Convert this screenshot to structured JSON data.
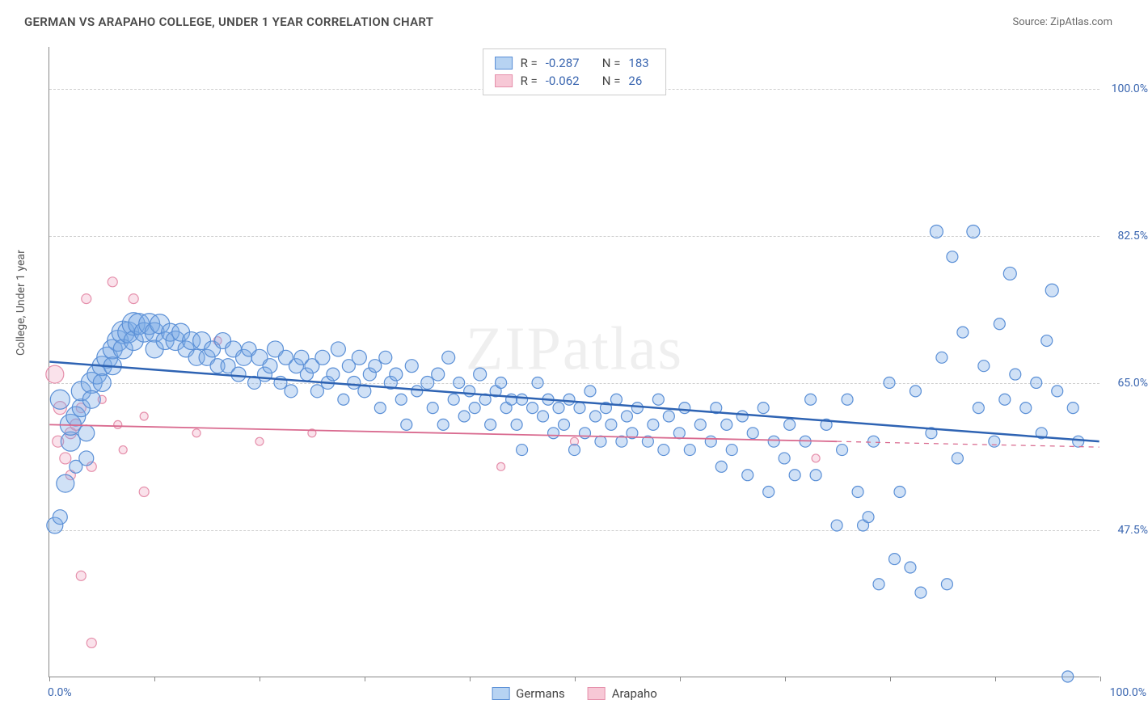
{
  "title": "GERMAN VS ARAPAHO COLLEGE, UNDER 1 YEAR CORRELATION CHART",
  "source": "Source: ZipAtlas.com",
  "ylabel": "College, Under 1 year",
  "watermark": "ZIPatlas",
  "xaxis": {
    "min_label": "0.0%",
    "max_label": "100.0%",
    "min": 0,
    "max": 100,
    "tick_positions": [
      0,
      10,
      20,
      30,
      40,
      50,
      60,
      70,
      80,
      90,
      100
    ]
  },
  "yaxis": {
    "min": 30,
    "max": 105,
    "ticks": [
      {
        "v": 47.5,
        "label": "47.5%"
      },
      {
        "v": 65.0,
        "label": "65.0%"
      },
      {
        "v": 82.5,
        "label": "82.5%"
      },
      {
        "v": 100.0,
        "label": "100.0%"
      }
    ],
    "grid_color": "#cfcfcf"
  },
  "legend_top": [
    {
      "swatch_fill": "#b7d3f2",
      "swatch_stroke": "#5a8fd6",
      "R": "-0.287",
      "N": "183"
    },
    {
      "swatch_fill": "#f7c8d6",
      "swatch_stroke": "#e58fab",
      "R": "-0.062",
      "N": "26"
    }
  ],
  "legend_bottom": [
    {
      "swatch_fill": "#b7d3f2",
      "swatch_stroke": "#5a8fd6",
      "label": "Germans"
    },
    {
      "swatch_fill": "#f7c8d6",
      "swatch_stroke": "#e58fab",
      "label": "Arapaho"
    }
  ],
  "series": {
    "germans": {
      "color_fill": "rgba(120,170,230,0.35)",
      "color_stroke": "#5a8fd6",
      "trend": {
        "x1": 0,
        "y1": 67.5,
        "x2": 100,
        "y2": 58,
        "color": "#2e63b3",
        "width": 2.5
      },
      "points": [
        {
          "x": 0.5,
          "y": 48,
          "r": 10
        },
        {
          "x": 1,
          "y": 49,
          "r": 9
        },
        {
          "x": 1,
          "y": 63,
          "r": 12
        },
        {
          "x": 1.5,
          "y": 53,
          "r": 11
        },
        {
          "x": 2,
          "y": 58,
          "r": 12
        },
        {
          "x": 2,
          "y": 60,
          "r": 13
        },
        {
          "x": 2.5,
          "y": 61,
          "r": 12
        },
        {
          "x": 2.5,
          "y": 55,
          "r": 8
        },
        {
          "x": 3,
          "y": 62,
          "r": 11
        },
        {
          "x": 3,
          "y": 64,
          "r": 12
        },
        {
          "x": 3.5,
          "y": 59,
          "r": 10
        },
        {
          "x": 3.5,
          "y": 56,
          "r": 9
        },
        {
          "x": 4,
          "y": 65,
          "r": 13
        },
        {
          "x": 4,
          "y": 63,
          "r": 11
        },
        {
          "x": 4.5,
          "y": 66,
          "r": 12
        },
        {
          "x": 5,
          "y": 67,
          "r": 12
        },
        {
          "x": 5,
          "y": 65,
          "r": 11
        },
        {
          "x": 5.5,
          "y": 68,
          "r": 13
        },
        {
          "x": 6,
          "y": 69,
          "r": 12
        },
        {
          "x": 6,
          "y": 67,
          "r": 11
        },
        {
          "x": 6.5,
          "y": 70,
          "r": 13
        },
        {
          "x": 7,
          "y": 71,
          "r": 14
        },
        {
          "x": 7,
          "y": 69,
          "r": 12
        },
        {
          "x": 7.5,
          "y": 71,
          "r": 13
        },
        {
          "x": 8,
          "y": 72,
          "r": 14
        },
        {
          "x": 8,
          "y": 70,
          "r": 12
        },
        {
          "x": 8.5,
          "y": 72,
          "r": 13
        },
        {
          "x": 9,
          "y": 71,
          "r": 12
        },
        {
          "x": 9.5,
          "y": 72,
          "r": 13
        },
        {
          "x": 10,
          "y": 71,
          "r": 12
        },
        {
          "x": 10,
          "y": 69,
          "r": 11
        },
        {
          "x": 10.5,
          "y": 72,
          "r": 12
        },
        {
          "x": 11,
          "y": 70,
          "r": 11
        },
        {
          "x": 11.5,
          "y": 71,
          "r": 11
        },
        {
          "x": 12,
          "y": 70,
          "r": 12
        },
        {
          "x": 12.5,
          "y": 71,
          "r": 11
        },
        {
          "x": 13,
          "y": 69,
          "r": 10
        },
        {
          "x": 13.5,
          "y": 70,
          "r": 11
        },
        {
          "x": 14,
          "y": 68,
          "r": 10
        },
        {
          "x": 14.5,
          "y": 70,
          "r": 11
        },
        {
          "x": 15,
          "y": 68,
          "r": 10
        },
        {
          "x": 15.5,
          "y": 69,
          "r": 10
        },
        {
          "x": 16,
          "y": 67,
          "r": 9
        },
        {
          "x": 16.5,
          "y": 70,
          "r": 10
        },
        {
          "x": 17,
          "y": 67,
          "r": 9
        },
        {
          "x": 17.5,
          "y": 69,
          "r": 10
        },
        {
          "x": 18,
          "y": 66,
          "r": 9
        },
        {
          "x": 18.5,
          "y": 68,
          "r": 10
        },
        {
          "x": 19,
          "y": 69,
          "r": 9
        },
        {
          "x": 19.5,
          "y": 65,
          "r": 8
        },
        {
          "x": 20,
          "y": 68,
          "r": 10
        },
        {
          "x": 20.5,
          "y": 66,
          "r": 9
        },
        {
          "x": 21,
          "y": 67,
          "r": 9
        },
        {
          "x": 21.5,
          "y": 69,
          "r": 10
        },
        {
          "x": 22,
          "y": 65,
          "r": 8
        },
        {
          "x": 22.5,
          "y": 68,
          "r": 9
        },
        {
          "x": 23,
          "y": 64,
          "r": 8
        },
        {
          "x": 23.5,
          "y": 67,
          "r": 9
        },
        {
          "x": 24,
          "y": 68,
          "r": 9
        },
        {
          "x": 24.5,
          "y": 66,
          "r": 8
        },
        {
          "x": 25,
          "y": 67,
          "r": 9
        },
        {
          "x": 25.5,
          "y": 64,
          "r": 8
        },
        {
          "x": 26,
          "y": 68,
          "r": 9
        },
        {
          "x": 26.5,
          "y": 65,
          "r": 8
        },
        {
          "x": 27,
          "y": 66,
          "r": 8
        },
        {
          "x": 27.5,
          "y": 69,
          "r": 9
        },
        {
          "x": 28,
          "y": 63,
          "r": 7
        },
        {
          "x": 28.5,
          "y": 67,
          "r": 8
        },
        {
          "x": 29,
          "y": 65,
          "r": 8
        },
        {
          "x": 29.5,
          "y": 68,
          "r": 9
        },
        {
          "x": 30,
          "y": 64,
          "r": 8
        },
        {
          "x": 30.5,
          "y": 66,
          "r": 8
        },
        {
          "x": 31,
          "y": 67,
          "r": 8
        },
        {
          "x": 31.5,
          "y": 62,
          "r": 7
        },
        {
          "x": 32,
          "y": 68,
          "r": 8
        },
        {
          "x": 32.5,
          "y": 65,
          "r": 8
        },
        {
          "x": 33,
          "y": 66,
          "r": 8
        },
        {
          "x": 33.5,
          "y": 63,
          "r": 7
        },
        {
          "x": 34,
          "y": 60,
          "r": 7
        },
        {
          "x": 34.5,
          "y": 67,
          "r": 8
        },
        {
          "x": 35,
          "y": 64,
          "r": 7
        },
        {
          "x": 36,
          "y": 65,
          "r": 8
        },
        {
          "x": 36.5,
          "y": 62,
          "r": 7
        },
        {
          "x": 37,
          "y": 66,
          "r": 8
        },
        {
          "x": 37.5,
          "y": 60,
          "r": 7
        },
        {
          "x": 38,
          "y": 68,
          "r": 8
        },
        {
          "x": 38.5,
          "y": 63,
          "r": 7
        },
        {
          "x": 39,
          "y": 65,
          "r": 7
        },
        {
          "x": 39.5,
          "y": 61,
          "r": 7
        },
        {
          "x": 40,
          "y": 64,
          "r": 7
        },
        {
          "x": 40.5,
          "y": 62,
          "r": 7
        },
        {
          "x": 41,
          "y": 66,
          "r": 8
        },
        {
          "x": 41.5,
          "y": 63,
          "r": 7
        },
        {
          "x": 42,
          "y": 60,
          "r": 7
        },
        {
          "x": 42.5,
          "y": 64,
          "r": 7
        },
        {
          "x": 43,
          "y": 65,
          "r": 7
        },
        {
          "x": 43.5,
          "y": 62,
          "r": 7
        },
        {
          "x": 44,
          "y": 63,
          "r": 7
        },
        {
          "x": 44.5,
          "y": 60,
          "r": 7
        },
        {
          "x": 45,
          "y": 63,
          "r": 7
        },
        {
          "x": 45,
          "y": 57,
          "r": 7
        },
        {
          "x": 46,
          "y": 62,
          "r": 7
        },
        {
          "x": 46.5,
          "y": 65,
          "r": 7
        },
        {
          "x": 47,
          "y": 61,
          "r": 7
        },
        {
          "x": 47.5,
          "y": 63,
          "r": 7
        },
        {
          "x": 48,
          "y": 59,
          "r": 7
        },
        {
          "x": 48.5,
          "y": 62,
          "r": 7
        },
        {
          "x": 49,
          "y": 60,
          "r": 7
        },
        {
          "x": 49.5,
          "y": 63,
          "r": 7
        },
        {
          "x": 50,
          "y": 57,
          "r": 7
        },
        {
          "x": 50.5,
          "y": 62,
          "r": 7
        },
        {
          "x": 51,
          "y": 59,
          "r": 7
        },
        {
          "x": 51.5,
          "y": 64,
          "r": 7
        },
        {
          "x": 52,
          "y": 61,
          "r": 7
        },
        {
          "x": 52.5,
          "y": 58,
          "r": 7
        },
        {
          "x": 53,
          "y": 62,
          "r": 7
        },
        {
          "x": 53.5,
          "y": 60,
          "r": 7
        },
        {
          "x": 54,
          "y": 63,
          "r": 7
        },
        {
          "x": 54.5,
          "y": 58,
          "r": 7
        },
        {
          "x": 55,
          "y": 61,
          "r": 7
        },
        {
          "x": 55.5,
          "y": 59,
          "r": 7
        },
        {
          "x": 56,
          "y": 62,
          "r": 7
        },
        {
          "x": 57,
          "y": 58,
          "r": 7
        },
        {
          "x": 57.5,
          "y": 60,
          "r": 7
        },
        {
          "x": 58,
          "y": 63,
          "r": 7
        },
        {
          "x": 58.5,
          "y": 57,
          "r": 7
        },
        {
          "x": 59,
          "y": 61,
          "r": 7
        },
        {
          "x": 60,
          "y": 59,
          "r": 7
        },
        {
          "x": 60.5,
          "y": 62,
          "r": 7
        },
        {
          "x": 61,
          "y": 57,
          "r": 7
        },
        {
          "x": 62,
          "y": 60,
          "r": 7
        },
        {
          "x": 63,
          "y": 58,
          "r": 7
        },
        {
          "x": 63.5,
          "y": 62,
          "r": 7
        },
        {
          "x": 64,
          "y": 55,
          "r": 7
        },
        {
          "x": 64.5,
          "y": 60,
          "r": 7
        },
        {
          "x": 65,
          "y": 57,
          "r": 7
        },
        {
          "x": 66,
          "y": 61,
          "r": 7
        },
        {
          "x": 66.5,
          "y": 54,
          "r": 7
        },
        {
          "x": 67,
          "y": 59,
          "r": 7
        },
        {
          "x": 68,
          "y": 62,
          "r": 7
        },
        {
          "x": 68.5,
          "y": 52,
          "r": 7
        },
        {
          "x": 69,
          "y": 58,
          "r": 7
        },
        {
          "x": 70,
          "y": 56,
          "r": 7
        },
        {
          "x": 70.5,
          "y": 60,
          "r": 7
        },
        {
          "x": 71,
          "y": 54,
          "r": 7
        },
        {
          "x": 72,
          "y": 58,
          "r": 7
        },
        {
          "x": 72.5,
          "y": 63,
          "r": 7
        },
        {
          "x": 73,
          "y": 54,
          "r": 7
        },
        {
          "x": 74,
          "y": 60,
          "r": 7
        },
        {
          "x": 75,
          "y": 48,
          "r": 7
        },
        {
          "x": 75.5,
          "y": 57,
          "r": 7
        },
        {
          "x": 76,
          "y": 63,
          "r": 7
        },
        {
          "x": 77,
          "y": 52,
          "r": 7
        },
        {
          "x": 77.5,
          "y": 48,
          "r": 7
        },
        {
          "x": 78,
          "y": 49,
          "r": 7
        },
        {
          "x": 78.5,
          "y": 58,
          "r": 7
        },
        {
          "x": 79,
          "y": 41,
          "r": 7
        },
        {
          "x": 80,
          "y": 65,
          "r": 7
        },
        {
          "x": 80.5,
          "y": 44,
          "r": 7
        },
        {
          "x": 81,
          "y": 52,
          "r": 7
        },
        {
          "x": 82,
          "y": 43,
          "r": 7
        },
        {
          "x": 82.5,
          "y": 64,
          "r": 7
        },
        {
          "x": 83,
          "y": 40,
          "r": 7
        },
        {
          "x": 84,
          "y": 59,
          "r": 7
        },
        {
          "x": 84.5,
          "y": 83,
          "r": 8
        },
        {
          "x": 85,
          "y": 68,
          "r": 7
        },
        {
          "x": 85.5,
          "y": 41,
          "r": 7
        },
        {
          "x": 86,
          "y": 80,
          "r": 7
        },
        {
          "x": 86.5,
          "y": 56,
          "r": 7
        },
        {
          "x": 87,
          "y": 71,
          "r": 7
        },
        {
          "x": 88,
          "y": 83,
          "r": 8
        },
        {
          "x": 88.5,
          "y": 62,
          "r": 7
        },
        {
          "x": 89,
          "y": 67,
          "r": 7
        },
        {
          "x": 90,
          "y": 58,
          "r": 7
        },
        {
          "x": 90.5,
          "y": 72,
          "r": 7
        },
        {
          "x": 91,
          "y": 63,
          "r": 7
        },
        {
          "x": 91.5,
          "y": 78,
          "r": 8
        },
        {
          "x": 92,
          "y": 66,
          "r": 7
        },
        {
          "x": 93,
          "y": 62,
          "r": 7
        },
        {
          "x": 94,
          "y": 65,
          "r": 7
        },
        {
          "x": 94.5,
          "y": 59,
          "r": 7
        },
        {
          "x": 95,
          "y": 70,
          "r": 7
        },
        {
          "x": 95.5,
          "y": 76,
          "r": 8
        },
        {
          "x": 96,
          "y": 64,
          "r": 7
        },
        {
          "x": 97,
          "y": 30,
          "r": 7
        },
        {
          "x": 97.5,
          "y": 62,
          "r": 7
        },
        {
          "x": 98,
          "y": 58,
          "r": 7
        }
      ]
    },
    "arapaho": {
      "color_fill": "rgba(240,160,190,0.30)",
      "color_stroke": "#e58fab",
      "trend": {
        "x1": 0,
        "y1": 60,
        "x2": 75,
        "y2": 58,
        "dash_to_x": 100,
        "color": "#d96a8f",
        "width": 1.8
      },
      "points": [
        {
          "x": 0.5,
          "y": 66,
          "r": 11
        },
        {
          "x": 0.8,
          "y": 58,
          "r": 7
        },
        {
          "x": 1,
          "y": 62,
          "r": 8
        },
        {
          "x": 1.5,
          "y": 56,
          "r": 7
        },
        {
          "x": 2,
          "y": 59,
          "r": 7
        },
        {
          "x": 2,
          "y": 54,
          "r": 6
        },
        {
          "x": 2.5,
          "y": 60,
          "r": 7
        },
        {
          "x": 3,
          "y": 62,
          "r": 6
        },
        {
          "x": 3,
          "y": 42,
          "r": 6
        },
        {
          "x": 3.5,
          "y": 75,
          "r": 6
        },
        {
          "x": 4,
          "y": 55,
          "r": 6
        },
        {
          "x": 4,
          "y": 34,
          "r": 6
        },
        {
          "x": 5,
          "y": 63,
          "r": 5
        },
        {
          "x": 6,
          "y": 77,
          "r": 6
        },
        {
          "x": 6.5,
          "y": 60,
          "r": 5
        },
        {
          "x": 7,
          "y": 57,
          "r": 5
        },
        {
          "x": 8,
          "y": 75,
          "r": 6
        },
        {
          "x": 9,
          "y": 52,
          "r": 6
        },
        {
          "x": 9,
          "y": 61,
          "r": 5
        },
        {
          "x": 14,
          "y": 59,
          "r": 5
        },
        {
          "x": 16,
          "y": 70,
          "r": 5
        },
        {
          "x": 20,
          "y": 58,
          "r": 5
        },
        {
          "x": 25,
          "y": 59,
          "r": 5
        },
        {
          "x": 43,
          "y": 55,
          "r": 5
        },
        {
          "x": 50,
          "y": 58,
          "r": 5
        },
        {
          "x": 73,
          "y": 56,
          "r": 5
        }
      ]
    }
  }
}
